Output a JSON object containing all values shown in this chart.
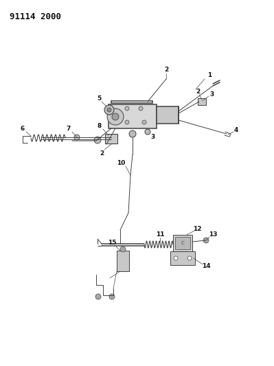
{
  "title": "91114 2000",
  "bg_color": "#ffffff",
  "line_color": "#404040",
  "label_color": "#111111",
  "label_fontsize": 6.5,
  "fig_width": 3.99,
  "fig_height": 5.33,
  "dpi": 100
}
